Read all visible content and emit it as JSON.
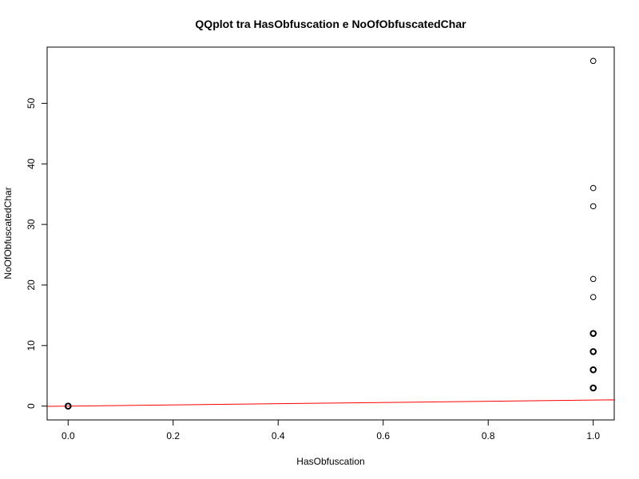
{
  "chart_data": {
    "type": "scatter",
    "title": "QQplot tra HasObfuscation e NoOfObfuscatedChar",
    "xlabel": "HasObfuscation",
    "ylabel": "NoOfObfuscatedChar",
    "xlim": [
      -0.04,
      1.04
    ],
    "ylim": [
      -2.28,
      59.28
    ],
    "x_ticks": [
      0.0,
      0.2,
      0.4,
      0.6,
      0.8,
      1.0
    ],
    "x_tick_labels": [
      "0.0",
      "0.2",
      "0.4",
      "0.6",
      "0.8",
      "1.0"
    ],
    "y_ticks": [
      0,
      10,
      20,
      30,
      40,
      50
    ],
    "y_tick_labels": [
      "0",
      "10",
      "20",
      "30",
      "40",
      "50"
    ],
    "grid": false,
    "legend": "none",
    "points": [
      {
        "x": 0,
        "y": 0
      },
      {
        "x": 1,
        "y": 3
      },
      {
        "x": 1,
        "y": 6
      },
      {
        "x": 1,
        "y": 9
      },
      {
        "x": 1,
        "y": 12
      },
      {
        "x": 1,
        "y": 18
      },
      {
        "x": 1,
        "y": 21
      },
      {
        "x": 1,
        "y": 33
      },
      {
        "x": 1,
        "y": 36
      },
      {
        "x": 1,
        "y": 57
      }
    ],
    "reference_line": {
      "intercept": 0,
      "slope": 1,
      "color": "#ff0000"
    },
    "point_color": "#000000"
  }
}
